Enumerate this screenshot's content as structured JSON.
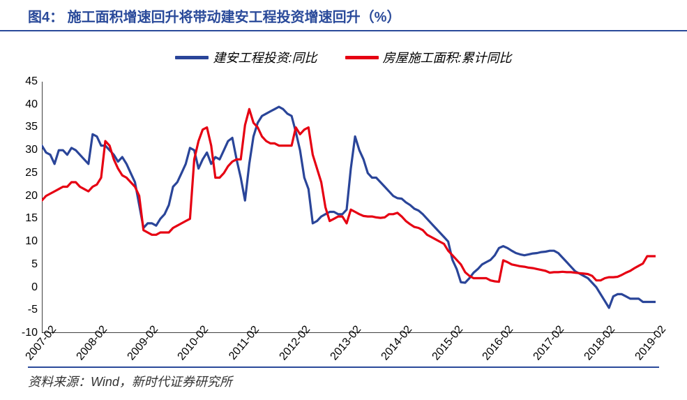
{
  "title": "图4： 施工面积增速回升将带动建安工程投资增速回升（%）",
  "legend": {
    "s1": "建安工程投资:同比",
    "s2": "房屋施工面积:累计同比"
  },
  "colors": {
    "s1": "#2a4599",
    "s2": "#e60012",
    "title": "#2a4a9a",
    "border": "#2a4a9a",
    "axis": "#000000",
    "bg": "#ffffff"
  },
  "chart": {
    "type": "line",
    "ylim": [
      -10,
      45
    ],
    "ytick_step": 5,
    "yticks": [
      -10,
      -5,
      0,
      5,
      10,
      15,
      20,
      25,
      30,
      35,
      40,
      45
    ],
    "xlabels": [
      "2007-02",
      "2008-02",
      "2009-02",
      "2010-02",
      "2011-02",
      "2012-02",
      "2013-02",
      "2014-02",
      "2015-02",
      "2016-02",
      "2017-02",
      "2018-02",
      "2019-02"
    ],
    "x_range": 145,
    "x_major_step": 12,
    "line_width": 3.2,
    "series": {
      "s1": [
        31,
        29.5,
        29,
        27,
        30,
        30,
        29,
        30.5,
        30,
        29,
        28,
        27,
        33.5,
        33,
        31,
        31,
        30,
        29,
        27.5,
        28.5,
        27,
        25,
        23,
        18,
        13,
        14,
        14,
        13.5,
        15,
        16,
        18,
        22,
        23,
        25,
        27,
        30.5,
        30,
        26,
        28,
        29.5,
        27,
        28.5,
        28,
        30,
        32,
        32.7,
        28,
        24,
        19,
        27,
        33,
        36,
        37.5,
        38,
        38.5,
        39,
        39.5,
        39,
        38,
        37.5,
        34,
        30,
        24,
        21.5,
        14,
        14.5,
        15.5,
        16,
        16.5,
        16.5,
        16,
        16,
        17,
        26,
        33,
        30,
        28,
        25,
        24,
        24,
        23,
        22,
        21,
        20,
        19.5,
        19.4,
        18.6,
        18,
        17.2,
        16.8,
        16,
        15,
        14,
        13,
        12,
        11,
        10,
        6,
        4,
        1.1,
        1,
        2,
        3.2,
        4,
        5,
        5.5,
        6,
        7,
        8.6,
        9,
        8.6,
        8,
        7.5,
        7.2,
        7,
        7.2,
        7.4,
        7.5,
        7.7,
        7.8,
        8,
        8,
        7.5,
        6.5,
        5.5,
        4.5,
        3.5,
        3,
        2.5,
        2,
        1,
        0,
        -1.5,
        -3,
        -4.5,
        -2,
        -1.5,
        -1.5,
        -2,
        -2.5,
        -2.5,
        -2.5,
        -3.2,
        -3.2,
        -3.2,
        -3.2
      ],
      "s2": [
        19,
        20,
        20.5,
        21,
        21.5,
        22,
        22,
        23,
        23,
        22,
        21.5,
        21,
        22,
        22.5,
        24,
        32,
        31,
        28,
        26,
        24.5,
        24,
        23,
        22,
        20,
        12.5,
        12,
        11.5,
        11.5,
        12,
        12,
        12,
        13,
        13.5,
        14,
        14.5,
        15,
        28,
        32,
        34.5,
        35,
        31,
        24,
        24,
        25,
        26.5,
        27.5,
        28,
        28,
        35.5,
        39,
        36,
        35,
        33,
        32,
        31.5,
        31.5,
        31,
        31,
        31,
        31,
        35,
        33.5,
        34.5,
        35,
        29,
        26,
        23,
        17.5,
        14.5,
        15,
        15.5,
        15.5,
        14,
        17,
        16.5,
        16,
        15.6,
        15.5,
        15.5,
        15.3,
        15.2,
        15.3,
        16,
        16,
        16.3,
        15.5,
        14.5,
        13.8,
        13.2,
        13,
        12.5,
        11.5,
        11,
        10.5,
        10,
        9.5,
        8,
        7,
        6,
        5,
        3.3,
        2.5,
        2,
        2,
        2,
        2,
        1.5,
        1.3,
        1.2,
        5.9,
        5.5,
        5,
        4.8,
        4.6,
        4.5,
        4.3,
        4.2,
        4,
        3.8,
        3.6,
        3.2,
        3.3,
        3.3,
        3.4,
        3.3,
        3.3,
        3.2,
        3.1,
        3,
        2.9,
        2.5,
        1.5,
        1.5,
        2,
        2.2,
        2.2,
        2.3,
        2.7,
        3.2,
        3.6,
        4.2,
        4.7,
        5.2,
        6.8,
        6.8,
        6.8
      ]
    }
  },
  "source": "资料来源：Wind，新时代证券研究所"
}
